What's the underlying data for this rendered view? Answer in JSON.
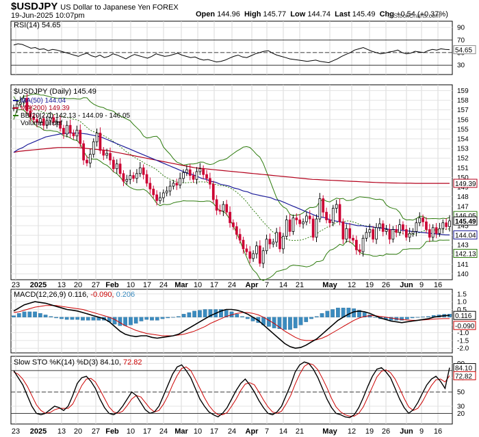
{
  "header": {
    "symbol": "$USDJPY",
    "description": "US Dollar to Japanese Yen FOREX",
    "date": "19-Jun-2025 10:07pm",
    "open_label": "Open",
    "open": "144.96",
    "high_label": "High",
    "high": "145.77",
    "low_label": "Low",
    "low": "144.74",
    "last_label": "Last",
    "last": "145.49",
    "chg_label": "Chg",
    "chg": "+0.54 (+0.37%)",
    "copyright": "© StockCharts.com"
  },
  "colors": {
    "up_candle": "#000000",
    "down_candle": "#cc0033",
    "ma50": "#1a1a99",
    "ma200": "#b3001b",
    "bb": "#2b7a0b",
    "bb_mid": "#2b7a0b",
    "macd_hist": "#3b8bbf",
    "signal": "#cc0000",
    "stoch_k": "#000000",
    "stoch_d": "#cc0000"
  },
  "rsi_legend": {
    "label": "RSI(14)",
    "value": "54.65"
  },
  "price_legend": {
    "title": "$USDJPY (Daily)",
    "value": "145.49",
    "ma50": "MA(50)",
    "ma50_value": "144.04",
    "ma200": "MA(200)",
    "ma200_value": "149.39",
    "bb": "BB(20,2.0)",
    "bb_values": "142.13 - 144.09 - 146.05",
    "volume": "Volume undef"
  },
  "macd_legend": {
    "label": "MACD(12,26,9)",
    "macd": "0.116",
    "signal": "-0.090",
    "hist": "0.206"
  },
  "stoch_legend": {
    "label": "Slow STO %K(14) %D(3)",
    "k": "84.10",
    "d": "72.82"
  },
  "x_axis": {
    "labels": [
      "23",
      "2025",
      "13",
      "20",
      "27",
      "Feb",
      "10",
      "17",
      "24",
      "Mar",
      "10",
      "17",
      "24",
      "Apr",
      "7",
      "14",
      "21",
      "May",
      "12",
      "19",
      "26",
      "Jun",
      "9",
      "16"
    ],
    "bold": [
      "2025",
      "Feb",
      "Mar",
      "Apr",
      "May",
      "Jun"
    ]
  },
  "chart_data": [
    {
      "type": "line",
      "name_label": "RSI(14)",
      "ylim": [
        15,
        100
      ],
      "yticks": [
        "90",
        "70",
        "50",
        "30"
      ],
      "reference_lines": [
        70,
        50,
        30
      ],
      "last_value": "54.65",
      "values": [
        62,
        64,
        63,
        60,
        57,
        58,
        55,
        56,
        53,
        55,
        54,
        52,
        50,
        48,
        46,
        44,
        47,
        49,
        45,
        43,
        46,
        42,
        44,
        48,
        46,
        43,
        40,
        44,
        47,
        45,
        43,
        41,
        44,
        48,
        46,
        44,
        45,
        47,
        49,
        46,
        44,
        42,
        43,
        40,
        38,
        39,
        37,
        35,
        36,
        38,
        41,
        44,
        46,
        43,
        42,
        45,
        48,
        50,
        52,
        53,
        49,
        46,
        44,
        42,
        40,
        39,
        38,
        37,
        36,
        37,
        38,
        36,
        35,
        34,
        37,
        40,
        44,
        47,
        50,
        54,
        56,
        58,
        55,
        52,
        50,
        48,
        49,
        51,
        52,
        54,
        50,
        48,
        49,
        52,
        51,
        50,
        53,
        55,
        54,
        56,
        55,
        54.65
      ]
    },
    {
      "type": "candlestick",
      "name_label": "$USDJPY (Daily)",
      "ylim": [
        139.4,
        159.6
      ],
      "yticks": [
        "159",
        "158",
        "157",
        "156",
        "155",
        "154",
        "153",
        "152",
        "151",
        "150",
        "149",
        "148",
        "147",
        "146",
        "145",
        "144",
        "143",
        "142",
        "141",
        "140"
      ],
      "price_labels": {
        "ma200": "149.39",
        "bb_upper": "146.05",
        "last": "145.49",
        "ma50": "144.04",
        "bb_lower": "142.13"
      },
      "close": [
        157.2,
        157.6,
        157.8,
        158.2,
        156.9,
        156.3,
        156.0,
        155.7,
        156.1,
        155.4,
        155.9,
        156.2,
        155.7,
        155.8,
        155.1,
        154.5,
        155.4,
        154.6,
        154.3,
        154.9,
        153.5,
        151.8,
        151.5,
        152.4,
        153.7,
        154.6,
        152.8,
        152.3,
        152.5,
        151.8,
        150.9,
        151.4,
        150.4,
        149.6,
        149.8,
        150.2,
        149.9,
        150.4,
        151.0,
        150.3,
        149.4,
        148.8,
        148.2,
        147.6,
        147.9,
        148.4,
        148.6,
        149.1,
        149.4,
        149.2,
        149.9,
        150.5,
        150.8,
        150.2,
        149.8,
        150.6,
        150.9,
        150.3,
        149.9,
        149.3,
        147.7,
        146.6,
        146.5,
        147.2,
        146.4,
        145.3,
        144.9,
        144.1,
        143.5,
        142.6,
        142.3,
        141.6,
        142.1,
        142.9,
        141.1,
        142.4,
        143.6,
        143.1,
        143.3,
        144.3,
        142.6,
        143.9,
        145.6,
        144.4,
        145.8,
        145.6,
        145.2,
        145.4,
        146.0,
        145.7,
        143.8,
        145.7,
        147.8,
        146.4,
        145.6,
        145.3,
        146.8,
        147.2,
        145.4,
        143.6,
        144.7,
        143.7,
        143.5,
        142.5,
        142.3,
        143.7,
        144.3,
        144.6,
        143.6,
        144.8,
        145.2,
        144.4,
        144.6,
        143.6,
        144.6,
        144.3,
        145.1,
        144.6,
        143.8,
        144.2,
        144.4,
        145.3,
        145.8,
        145.4,
        144.6,
        143.8,
        144.8,
        144.2,
        144.7,
        145.3,
        144.9,
        145.5
      ],
      "ma50": [
        152.6,
        152.9,
        153.1,
        153.4,
        153.6,
        153.8,
        154.0,
        154.2,
        154.3,
        154.4,
        154.5,
        154.55,
        154.6,
        154.6,
        154.6,
        154.55,
        154.5,
        154.4,
        154.3,
        154.2,
        154.0,
        153.8,
        153.6,
        153.4,
        153.2,
        153.0,
        152.8,
        152.6,
        152.4,
        152.2,
        152.0,
        151.8,
        151.6,
        151.4,
        151.2,
        151.0,
        150.8,
        150.6,
        150.4,
        150.3,
        150.1,
        149.9,
        149.8,
        149.6,
        149.5,
        149.3,
        149.2,
        149.1,
        148.9,
        148.8,
        148.6,
        148.5,
        148.3,
        148.2,
        148.1,
        148.0,
        147.9,
        147.7,
        147.6,
        147.4,
        147.2,
        147.0,
        146.8,
        146.6,
        146.4,
        146.2,
        146.0,
        145.9,
        145.8,
        145.6,
        145.5,
        145.4,
        145.3,
        145.2,
        145.1,
        145.0,
        145.0,
        144.9,
        144.9,
        144.8,
        144.75,
        144.7,
        144.6,
        144.6,
        144.55,
        144.5,
        144.45,
        144.4,
        144.35,
        144.3,
        144.25,
        144.2,
        144.15,
        144.1,
        144.05,
        144.04
      ],
      "ma200": [
        152.6,
        152.7,
        152.75,
        152.8,
        152.85,
        152.9,
        152.95,
        153.0,
        153.05,
        153.1,
        153.1,
        153.1,
        153.1,
        153.1,
        153.05,
        153.0,
        152.95,
        152.9,
        152.85,
        152.8,
        152.7,
        152.6,
        152.5,
        152.4,
        152.3,
        152.2,
        152.1,
        152.0,
        151.9,
        151.8,
        151.7,
        151.6,
        151.5,
        151.4,
        151.3,
        151.2,
        151.1,
        151.0,
        150.95,
        150.9,
        150.85,
        150.8,
        150.75,
        150.7,
        150.65,
        150.6,
        150.55,
        150.5,
        150.45,
        150.4,
        150.35,
        150.3,
        150.25,
        150.2,
        150.15,
        150.1,
        150.05,
        150.0,
        149.95,
        149.9,
        149.85,
        149.8,
        149.78,
        149.75,
        149.72,
        149.7,
        149.68,
        149.65,
        149.62,
        149.6,
        149.58,
        149.55,
        149.53,
        149.5,
        149.48,
        149.46,
        149.44,
        149.43,
        149.42,
        149.41,
        149.4,
        149.4,
        149.39,
        149.39,
        149.39,
        149.39,
        149.39,
        149.39,
        149.39,
        149.39
      ]
    },
    {
      "type": "bar+line",
      "name_label": "MACD(12,26,9)",
      "ylim": [
        -2.3,
        1.8
      ],
      "yticks": [
        "1.5",
        "1.0",
        "0.5",
        "0.0",
        "-0.5",
        "-1.0",
        "-1.5",
        "-2.0"
      ],
      "last_values": {
        "macd": "0.116",
        "signal": "-0.090"
      },
      "macd": [
        0.4,
        0.6,
        0.8,
        0.9,
        1.0,
        0.95,
        0.9,
        0.8,
        0.7,
        0.6,
        0.5,
        0.45,
        0.4,
        0.3,
        0.2,
        0.1,
        0.0,
        -0.1,
        -0.3,
        -0.6,
        -0.9,
        -1.1,
        -1.2,
        -1.25,
        -1.2,
        -1.2,
        -1.3,
        -1.35,
        -1.3,
        -1.25,
        -1.2,
        -1.1,
        -0.9,
        -0.7,
        -0.5,
        -0.3,
        -0.1,
        0.1,
        0.25,
        0.4,
        0.5,
        0.5,
        0.45,
        0.35,
        0.2,
        0.0,
        -0.2,
        -0.5,
        -0.8,
        -1.1,
        -1.4,
        -1.7,
        -1.9,
        -2.0,
        -1.95,
        -1.8,
        -1.6,
        -1.4,
        -1.1,
        -0.8,
        -0.5,
        -0.2,
        0.0,
        0.2,
        0.35,
        0.4,
        0.35,
        0.25,
        0.1,
        -0.05,
        -0.15,
        -0.25,
        -0.3,
        -0.35,
        -0.3,
        -0.25,
        -0.2,
        -0.15,
        -0.1,
        0.0,
        0.05,
        0.1,
        0.116
      ],
      "signal": [
        0.3,
        0.35,
        0.45,
        0.55,
        0.65,
        0.7,
        0.75,
        0.75,
        0.75,
        0.7,
        0.65,
        0.6,
        0.55,
        0.5,
        0.4,
        0.3,
        0.2,
        0.1,
        0.0,
        -0.15,
        -0.35,
        -0.55,
        -0.7,
        -0.85,
        -0.95,
        -1.05,
        -1.1,
        -1.15,
        -1.2,
        -1.2,
        -1.2,
        -1.15,
        -1.1,
        -1.0,
        -0.9,
        -0.75,
        -0.6,
        -0.4,
        -0.25,
        -0.1,
        0.05,
        0.15,
        0.25,
        0.3,
        0.3,
        0.25,
        0.15,
        0.0,
        -0.2,
        -0.4,
        -0.65,
        -0.9,
        -1.1,
        -1.3,
        -1.45,
        -1.5,
        -1.5,
        -1.45,
        -1.35,
        -1.2,
        -1.0,
        -0.8,
        -0.6,
        -0.4,
        -0.2,
        -0.05,
        0.05,
        0.1,
        0.1,
        0.05,
        0.0,
        -0.05,
        -0.1,
        -0.15,
        -0.18,
        -0.2,
        -0.2,
        -0.18,
        -0.15,
        -0.12,
        -0.1,
        -0.09,
        -0.09
      ]
    },
    {
      "type": "line",
      "name_label": "Slow STO %K(14) %D(3)",
      "ylim": [
        5,
        100
      ],
      "yticks": [
        "90",
        "80",
        "70",
        "50",
        "30",
        "20"
      ],
      "reference_lines": [
        80,
        50,
        20
      ],
      "last_values": {
        "k": "84.10",
        "d": "72.82"
      },
      "k": [
        80,
        70,
        60,
        45,
        30,
        20,
        18,
        20,
        25,
        30,
        28,
        24,
        30,
        45,
        62,
        70,
        72,
        65,
        55,
        40,
        28,
        20,
        18,
        22,
        30,
        40,
        50,
        45,
        35,
        25,
        20,
        22,
        30,
        45,
        60,
        75,
        85,
        88,
        80,
        70,
        55,
        40,
        30,
        22,
        18,
        15,
        20,
        28,
        40,
        52,
        62,
        68,
        60,
        50,
        38,
        28,
        20,
        18,
        22,
        30,
        45,
        60,
        78,
        88,
        92,
        90,
        82,
        70,
        55,
        40,
        28,
        20,
        18,
        15,
        14,
        18,
        28,
        42,
        58,
        72,
        82,
        84,
        78,
        70,
        55,
        40,
        28,
        20,
        25,
        35,
        48,
        60,
        68,
        72,
        65,
        55,
        84.1
      ],
      "d": [
        78,
        75,
        68,
        58,
        45,
        32,
        24,
        20,
        21,
        25,
        27,
        27,
        27,
        33,
        46,
        59,
        68,
        69,
        64,
        53,
        41,
        29,
        22,
        20,
        23,
        31,
        40,
        45,
        43,
        35,
        27,
        22,
        24,
        33,
        45,
        60,
        73,
        83,
        85,
        80,
        68,
        55,
        42,
        31,
        23,
        18,
        18,
        21,
        30,
        40,
        52,
        61,
        63,
        60,
        50,
        39,
        29,
        22,
        20,
        23,
        33,
        45,
        61,
        75,
        86,
        90,
        88,
        81,
        69,
        56,
        41,
        29,
        22,
        18,
        16,
        16,
        20,
        29,
        43,
        57,
        71,
        79,
        81,
        77,
        68,
        55,
        41,
        29,
        24,
        27,
        36,
        48,
        59,
        67,
        68,
        64,
        72.82
      ]
    }
  ]
}
